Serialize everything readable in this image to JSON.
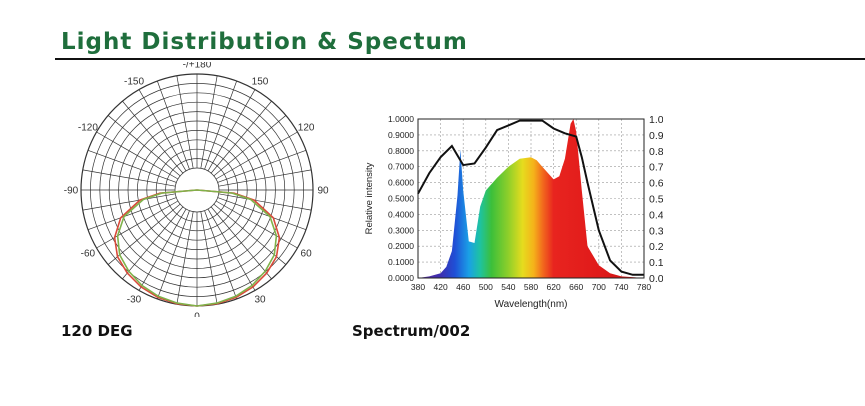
{
  "page": {
    "title": "Light Distribution & Spectum",
    "title_color": "#1f6e3c",
    "rule_color": "#111111",
    "left_caption": "120 DEG",
    "right_caption": "Spectrum/002"
  },
  "chart_data": [
    {
      "type": "polar",
      "angle_labels": [
        {
          "angle": 180,
          "text": "-/+180"
        },
        {
          "angle": 150,
          "text": "150"
        },
        {
          "angle": -150,
          "text": "-150"
        },
        {
          "angle": 120,
          "text": "120"
        },
        {
          "angle": -120,
          "text": "-120"
        },
        {
          "angle": 90,
          "text": "90"
        },
        {
          "angle": -90,
          "text": "-90"
        },
        {
          "angle": 60,
          "text": "60"
        },
        {
          "angle": -60,
          "text": "-60"
        },
        {
          "angle": 30,
          "text": "30"
        },
        {
          "angle": -30,
          "text": "-30"
        },
        {
          "angle": 0,
          "text": "0"
        }
      ],
      "angle_step": 10,
      "rings": 10,
      "series": [
        {
          "color": "#d94b3a",
          "beam_angle": 120,
          "points": [
            [
              0,
              1.0
            ],
            [
              10,
              0.995
            ],
            [
              20,
              0.985
            ],
            [
              30,
              0.965
            ],
            [
              40,
              0.935
            ],
            [
              50,
              0.895
            ],
            [
              60,
              0.82
            ],
            [
              70,
              0.7
            ],
            [
              80,
              0.5
            ],
            [
              85,
              0.32
            ],
            [
              90,
              0.0
            ]
          ]
        },
        {
          "color": "#7fb24a",
          "beam_angle": 120,
          "points": [
            [
              0,
              1.0
            ],
            [
              10,
              0.99
            ],
            [
              20,
              0.975
            ],
            [
              30,
              0.95
            ],
            [
              40,
              0.915
            ],
            [
              50,
              0.87
            ],
            [
              60,
              0.79
            ],
            [
              70,
              0.67
            ],
            [
              80,
              0.47
            ],
            [
              85,
              0.3
            ],
            [
              90,
              0.0
            ]
          ]
        }
      ]
    },
    {
      "type": "area",
      "x": [
        380,
        400,
        420,
        430,
        440,
        450,
        455,
        460,
        470,
        480,
        490,
        500,
        520,
        540,
        560,
        580,
        590,
        600,
        620,
        630,
        640,
        650,
        655,
        660,
        670,
        680,
        700,
        720,
        740,
        780
      ],
      "series": [
        {
          "values": [
            0.0,
            0.01,
            0.03,
            0.07,
            0.17,
            0.52,
            0.81,
            0.55,
            0.23,
            0.22,
            0.45,
            0.55,
            0.63,
            0.7,
            0.75,
            0.76,
            0.74,
            0.7,
            0.62,
            0.64,
            0.75,
            0.97,
            1.0,
            0.92,
            0.55,
            0.2,
            0.08,
            0.03,
            0.01,
            0.0
          ]
        }
      ],
      "line": {
        "color": "#111111",
        "x": [
          380,
          400,
          420,
          440,
          460,
          480,
          500,
          520,
          540,
          560,
          580,
          600,
          620,
          640,
          660,
          670,
          680,
          700,
          720,
          740,
          760,
          780
        ],
        "values": [
          0.53,
          0.66,
          0.76,
          0.83,
          0.71,
          0.72,
          0.82,
          0.93,
          0.96,
          0.99,
          0.99,
          0.99,
          0.94,
          0.91,
          0.89,
          0.76,
          0.6,
          0.3,
          0.11,
          0.04,
          0.02,
          0.02
        ]
      },
      "xlim": [
        380,
        780
      ],
      "ylim": [
        0,
        1
      ],
      "x_ticks": [
        "380",
        "420",
        "460",
        "500",
        "540",
        "580",
        "620",
        "660",
        "700",
        "740",
        "780"
      ],
      "left_ticks": [
        "0.0000",
        "0.1000",
        "0.2000",
        "0.3000",
        "0.4000",
        "0.5000",
        "0.6000",
        "0.7000",
        "0.8000",
        "0.9000",
        "1.0000"
      ],
      "right_ticks": [
        "0.0",
        "0.1",
        "0.2",
        "0.3",
        "0.4",
        "0.5",
        "0.6",
        "0.7",
        "0.8",
        "0.9",
        "1.0"
      ],
      "xlabel": "Wavelength(nm)",
      "ylabel": "Relative intensity",
      "grid": true,
      "fill": "wavelength-gradient"
    }
  ]
}
